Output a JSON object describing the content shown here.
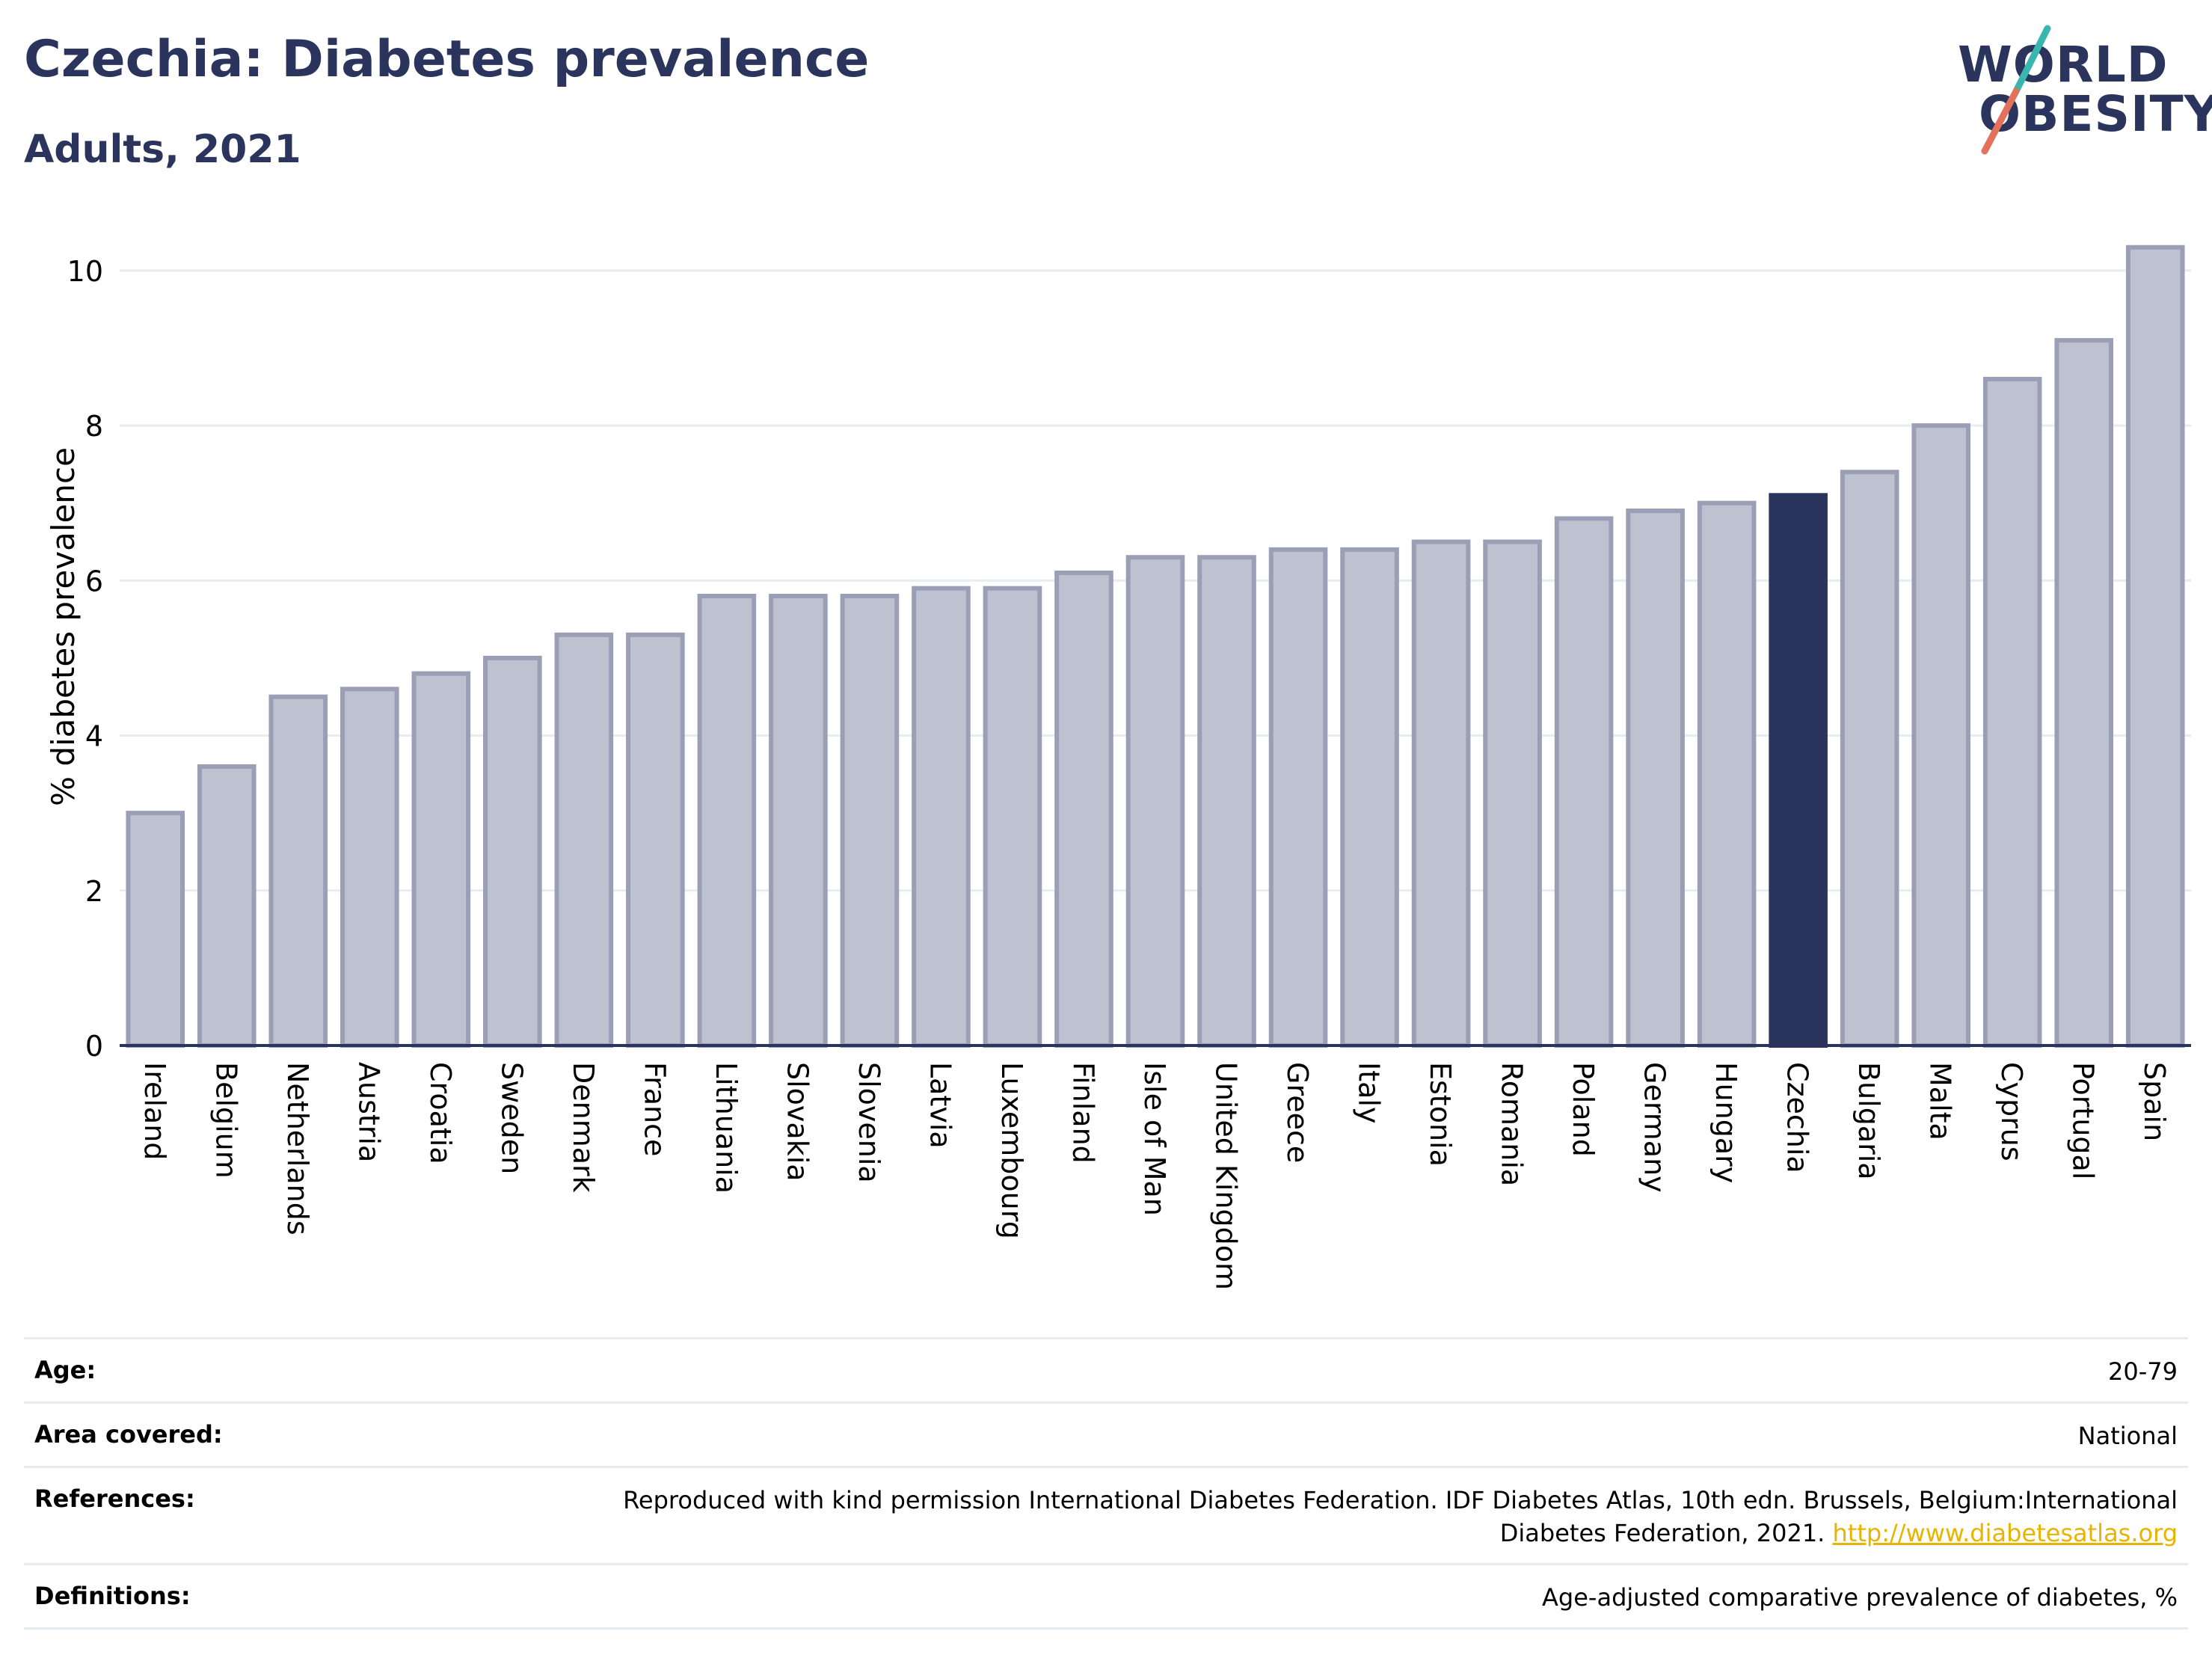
{
  "header": {
    "title": "Czechia: Diabetes prevalence",
    "subtitle": "Adults, 2021"
  },
  "logo": {
    "line1": "WORLD",
    "line2": "OBESITY",
    "slash_colors": [
      "#3ab5b0",
      "#e4715c"
    ]
  },
  "colors": {
    "bar": "#bec1cf",
    "bar_border": "#9a9fb6",
    "highlight": "#2b345c",
    "grid": "#e6ecef"
  },
  "chart_data": {
    "type": "bar",
    "title": "Czechia: Diabetes prevalence",
    "subtitle": "Adults, 2021",
    "xlabel": "",
    "ylabel": "% diabetes prevalence",
    "ylim": [
      0,
      10.5
    ],
    "yticks": [
      0,
      2,
      4,
      6,
      8,
      10
    ],
    "grid": true,
    "highlight": "Czechia",
    "categories": [
      "Ireland",
      "Belgium",
      "Netherlands",
      "Austria",
      "Croatia",
      "Sweden",
      "Denmark",
      "France",
      "Lithuania",
      "Slovakia",
      "Slovenia",
      "Latvia",
      "Luxembourg",
      "Finland",
      "Isle of Man",
      "United Kingdom",
      "Greece",
      "Italy",
      "Estonia",
      "Romania",
      "Poland",
      "Germany",
      "Hungary",
      "Czechia",
      "Bulgaria",
      "Malta",
      "Cyprus",
      "Portugal",
      "Spain"
    ],
    "values": [
      3.0,
      3.6,
      4.5,
      4.6,
      4.8,
      5.0,
      5.3,
      5.3,
      5.8,
      5.8,
      5.8,
      5.9,
      5.9,
      6.1,
      6.3,
      6.3,
      6.4,
      6.4,
      6.5,
      6.5,
      6.8,
      6.9,
      7.0,
      7.1,
      7.4,
      8.0,
      8.6,
      9.1,
      10.3
    ]
  },
  "meta": {
    "age_label": "Age:",
    "age_value": "20-79",
    "area_label": "Area covered:",
    "area_value": "National",
    "references_label": "References:",
    "references_value": "Reproduced with kind permission International Diabetes Federation.  IDF Diabetes Atlas, 10th edn. Brussels, Belgium:International Diabetes Federation, 2021.",
    "references_link": "http://www.diabetesatlas.org",
    "definitions_label": "Definitions:",
    "definitions_value": "Age-adjusted comparative prevalence of diabetes, %"
  }
}
